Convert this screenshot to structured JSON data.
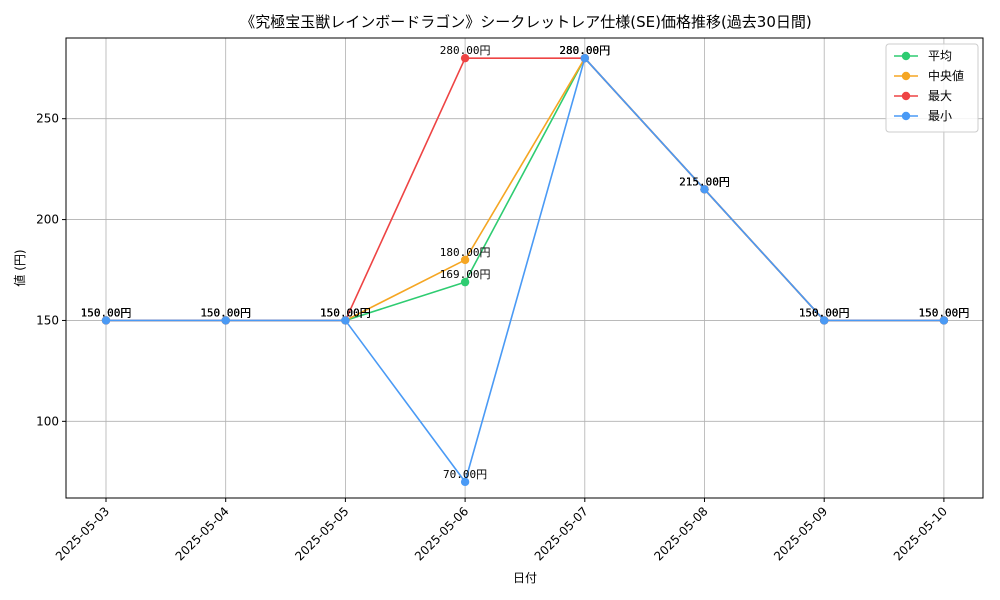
{
  "chart_data": {
    "type": "line",
    "title": "《究極宝玉獣レインボードラゴン》シークレットレア仕様(SE)価格推移(過去30日間)",
    "xlabel": "日付",
    "ylabel": "値 (円)",
    "categories": [
      "2025-05-03",
      "2025-05-04",
      "2025-05-05",
      "2025-05-06",
      "2025-05-07",
      "2025-05-08",
      "2025-05-09",
      "2025-05-10"
    ],
    "ylim": [
      62,
      290
    ],
    "yticks": [
      100,
      150,
      200,
      250
    ],
    "grid": true,
    "legend_position": "top-right",
    "series": [
      {
        "name": "平均",
        "color": "#2ecc71",
        "values": [
          150,
          150,
          150,
          169,
          280,
          215,
          150,
          150
        ]
      },
      {
        "name": "中央値",
        "color": "#f5a623",
        "values": [
          150,
          150,
          150,
          180,
          280,
          215,
          150,
          150
        ]
      },
      {
        "name": "最大",
        "color": "#ee4444",
        "values": [
          150,
          150,
          150,
          280,
          280,
          215,
          150,
          150
        ]
      },
      {
        "name": "最小",
        "color": "#4a9af5",
        "values": [
          150,
          150,
          150,
          70,
          280,
          215,
          150,
          150
        ]
      }
    ],
    "value_suffix": "円"
  }
}
